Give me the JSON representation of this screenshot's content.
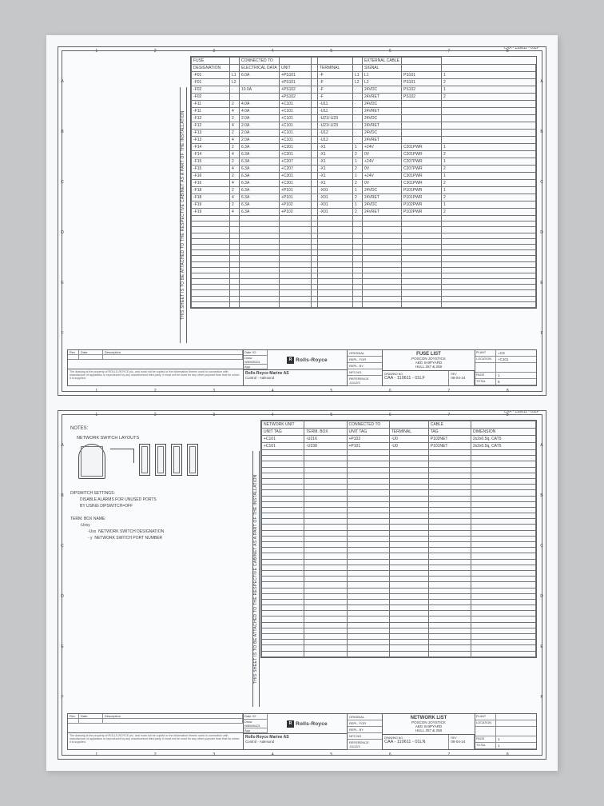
{
  "page": {
    "top_ref": "CAA - 110611 - 01LF",
    "bottom_ref": "CAA - 110611 - 01LF",
    "side_note": "THIS SHEET IS TO BE ATTACHED TO THE RESPECTIVE CABINET AS A PART OF THE INSTALLATION",
    "grid_cols": [
      "1",
      "2",
      "3",
      "4",
      "5",
      "6",
      "7",
      "8"
    ],
    "grid_rows": [
      "A",
      "B",
      "C",
      "D",
      "E",
      "F"
    ]
  },
  "fuse_table": {
    "group_headers": [
      "FUSE",
      "",
      "CONNECTED TO",
      "",
      "",
      "",
      "",
      "EXTERNAL CABLE",
      ""
    ],
    "columns": [
      "DESIGNATION",
      "",
      "ELECTRICAL DATA",
      "UNIT",
      "",
      "TERMINAL",
      "",
      "SIGNAL",
      "",
      ""
    ],
    "rows": [
      [
        "-F01",
        "L1",
        "6.0A",
        "+PS101",
        "",
        "-F",
        "L1",
        "L1",
        "PS101",
        "1"
      ],
      [
        "-F01",
        "L2",
        "",
        "+PS101",
        "",
        "-F",
        "L2",
        "L2",
        "PS101",
        "2"
      ],
      [
        "-F02",
        "·",
        "10.0A",
        "+PS102",
        "",
        "-F",
        "·",
        "24VDC",
        "PS102",
        "1"
      ],
      [
        "-F02",
        "·",
        "",
        "+PS102",
        "",
        "-F",
        "·",
        "24VRET",
        "PS102",
        "2"
      ],
      [
        "-F11",
        "2",
        "4.0A",
        "+C101",
        "",
        "-U11",
        "·",
        "24VDC",
        "",
        ""
      ],
      [
        "-F11",
        "4",
        "4.0A",
        "+C101",
        "",
        "-U11",
        "·",
        "24VRET",
        "",
        ""
      ],
      [
        "-F12",
        "2",
        "2.0A",
        "+C101",
        "",
        "-U21/-U23",
        "·",
        "24VDC",
        "",
        ""
      ],
      [
        "-F12",
        "4",
        "2.0A",
        "+C101",
        "",
        "-U21/-U23",
        "·",
        "24VRET",
        "",
        ""
      ],
      [
        "-F13",
        "2",
        "2.0A",
        "+C101",
        "",
        "-U12",
        "·",
        "24VDC",
        "",
        ""
      ],
      [
        "-F13",
        "4",
        "2.0A",
        "+C101",
        "",
        "-U12",
        "·",
        "24VRET",
        "",
        ""
      ],
      [
        "-F14",
        "2",
        "6.3A",
        "+C201",
        "",
        "-X1",
        "1",
        "+24V",
        "C201PWR",
        "1"
      ],
      [
        "-F14",
        "4",
        "6.3A",
        "+C201",
        "",
        "-X1",
        "2",
        "0V",
        "C201PWR",
        "2"
      ],
      [
        "-F15",
        "2",
        "6.3A",
        "+C207",
        "",
        "-X1",
        "1",
        "+24V",
        "C207PWR",
        "1"
      ],
      [
        "-F15",
        "4",
        "6.3A",
        "+C207",
        "",
        "-X1",
        "2",
        "0V",
        "C207PWR",
        "2"
      ],
      [
        "-F16",
        "2",
        "6.3A",
        "+C301",
        "",
        "-X1",
        "1",
        "+24V",
        "C301PWR",
        "1"
      ],
      [
        "-F16",
        "4",
        "6.3A",
        "+C301",
        "",
        "-X1",
        "2",
        "0V",
        "C301PWR",
        "2"
      ],
      [
        "-F18",
        "2",
        "6.3A",
        "+P101",
        "",
        "-X01",
        "1",
        "24VDC",
        "P101PWR",
        "1"
      ],
      [
        "-F18",
        "4",
        "6.3A",
        "+P101",
        "",
        "-X01",
        "2",
        "24VRET",
        "P101PWR",
        "2"
      ],
      [
        "-F19",
        "2",
        "6.3A",
        "+P102",
        "",
        "-X01",
        "1",
        "24VDC",
        "P102PWR",
        "1"
      ],
      [
        "-F19",
        "4",
        "6.3A",
        "+P102",
        "",
        "-X01",
        "2",
        "24VRET",
        "P102PWR",
        "2"
      ]
    ],
    "empty_rows": 16
  },
  "net_table": {
    "group_headers": [
      "NETWORK UNIT",
      "",
      "CONNECTED TO",
      "",
      "CABLE",
      ""
    ],
    "columns": [
      "UNIT TAG",
      "TERM. BOX",
      "UNIT TAG",
      "TERMINAL",
      "TAG",
      "DIMENSION"
    ],
    "rows": [
      [
        "+C101",
        "-U216",
        "+P102",
        "-U0",
        "P102NET",
        "2x2x0.5q, CAT5"
      ],
      [
        "+C101",
        "-U238",
        "+P101",
        "-U0",
        "P101NET",
        "2x2x0.5q, CAT5"
      ]
    ],
    "empty_rows": 36
  },
  "title_block_1": {
    "revisions": [
      [
        "Rev",
        "Date",
        "Description"
      ],
      [
        "",
        "",
        ""
      ]
    ],
    "small_rev": [
      [
        "Date",
        "X2"
      ],
      [
        "Draw",
        "W8/W0421"
      ],
      [
        "App",
        ""
      ]
    ],
    "legal": "The drawing is the property of ROLLS-ROYCE plc, and must not be copied or the information therein used in connection with manufacture of apparatus or reproduced by any unauthorised third party. It must not be used for any other purpose than that for which it is supplied.",
    "company_line1": "Rolls-Royce Marine AS",
    "company_line2": "Control - Aalesund",
    "brand": "Rolls-Royce",
    "left_labels": [
      "ORIGINAL",
      "REPL. FOR",
      "REPL. BY",
      "NFS NO.",
      "REFERENCE"
    ],
    "ref_val": "J1112/3",
    "title1": "FUSE LIST",
    "title2": "POSCON JOYSTICK",
    "title3": "ABG SHIPYARD",
    "title4": "HULL 257 & 258",
    "dwg_label": "DRAWING NO.",
    "dwg_no": "CAA - 110611 - 01LF",
    "rev": "08-04-24",
    "plant_label": "PLANT",
    "plant": "=CS",
    "loc_label": "LOCATION",
    "loc": "+C101",
    "page": "1",
    "total": "5",
    "page_lbl": "PAGE",
    "total_lbl": "TOTAL"
  },
  "title_block_2": {
    "title1": "NETWORK LIST",
    "title2": "POSCON JOYSTICK",
    "title3": "ABG SHIPYARD",
    "title4": "HULL 257 & 258",
    "dwg_no": "CAA - 110611 - 01LN",
    "rev": "08-04-24",
    "ref_val": "J1112/3",
    "page": "1",
    "total": "1"
  },
  "notes": {
    "hdr": "NOTES:",
    "layouts": "NETWORK SWITCH LAYOUTS",
    "dip1": "DIPSWITCH SETTINGS:",
    "dip2": "DISABLE ALARMS FOR UNUSED PORTS",
    "dip3": "BY USING DIPSWITCH=OFF",
    "tbn": "TERM. BOX NAME:",
    "tbn1": "-Uxxy",
    "tbn2": "-Uxx",
    "tbn2d": "NETWORK SWITCH DESIGNATION",
    "tbn3": "-  y",
    "tbn3d": "NETWORK SWITCH PORT NUMBER"
  }
}
